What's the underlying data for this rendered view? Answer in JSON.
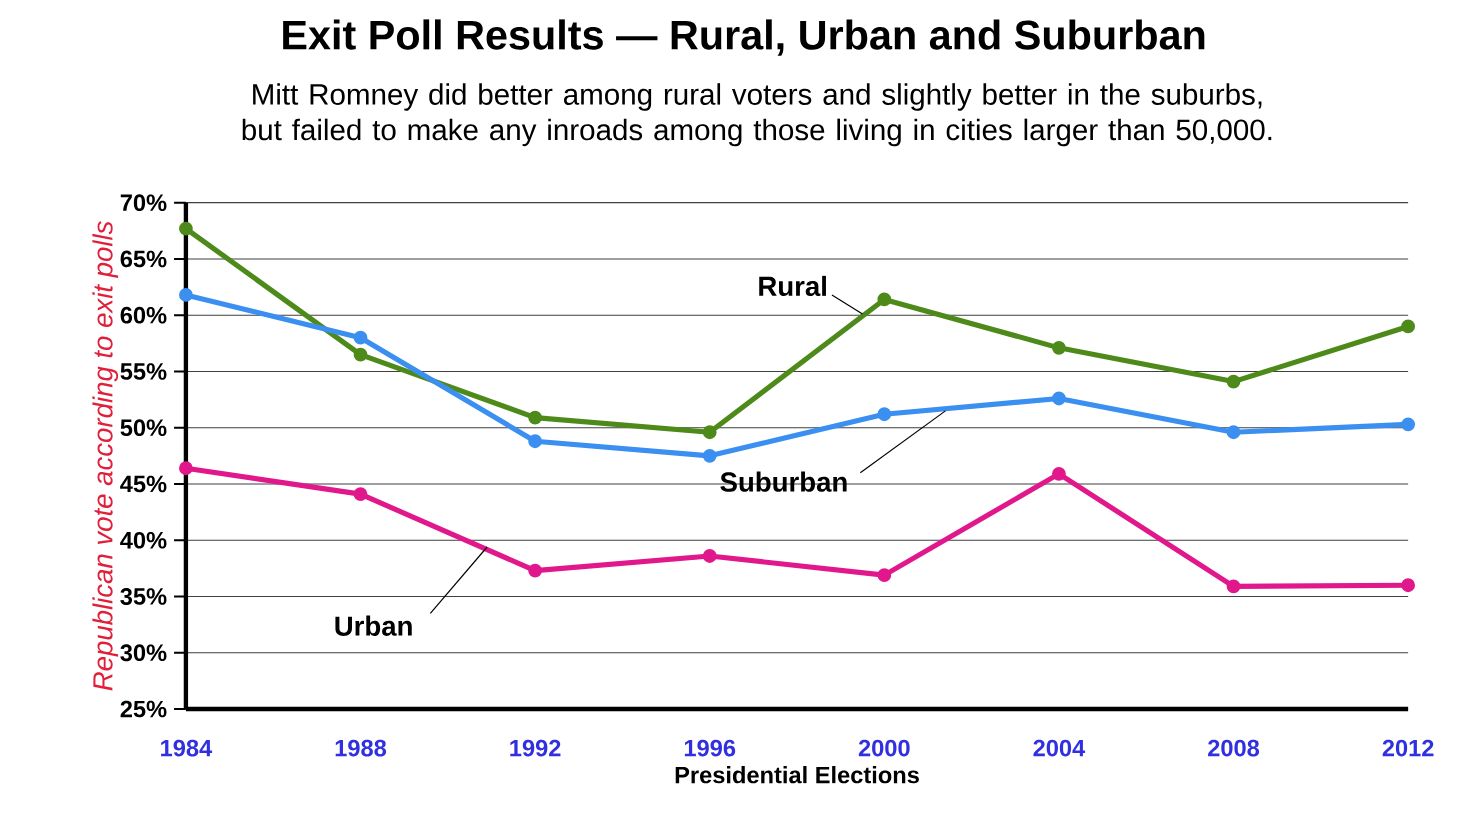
{
  "chart_data": {
    "type": "line",
    "title": "Exit Poll Results — Rural, Urban and Suburban",
    "subtitle": "Mitt Romney did better among rural voters and slightly better in the suburbs, but failed to make any inroads among those living in cities larger than 50,000.",
    "xlabel": "Presidential Elections",
    "ylabel": "Republican vote according to exit polls",
    "x": [
      1984,
      1988,
      1992,
      1996,
      2000,
      2004,
      2008,
      2012
    ],
    "xlim": [
      1984,
      2012
    ],
    "xticks": [
      1984,
      1988,
      1992,
      1996,
      2000,
      2004,
      2008,
      2012
    ],
    "ylim": [
      25,
      70
    ],
    "yticks": [
      {
        "value": 25,
        "label": "25%"
      },
      {
        "value": 30,
        "label": "30%"
      },
      {
        "value": 35,
        "label": "35%"
      },
      {
        "value": 40,
        "label": "40%"
      },
      {
        "value": 45,
        "label": "45%"
      },
      {
        "value": 50,
        "label": "50%"
      },
      {
        "value": 55,
        "label": "55%"
      },
      {
        "value": 60,
        "label": "60%"
      },
      {
        "value": 65,
        "label": "65%"
      },
      {
        "value": 70,
        "label": "70%"
      }
    ],
    "grid": "y",
    "legend": false,
    "marker": "circle",
    "line_style": "solid",
    "series": [
      {
        "name": "Rural",
        "color": "#4e8a1a",
        "values": [
          67.7,
          56.5,
          50.9,
          49.6,
          61.4,
          57.1,
          54.1,
          59.0
        ]
      },
      {
        "name": "Suburban",
        "color": "#3a8ff0",
        "values": [
          61.8,
          58.0,
          48.8,
          47.5,
          51.2,
          52.6,
          49.6,
          50.3
        ]
      },
      {
        "name": "Urban",
        "color": "#e0188c",
        "values": [
          46.4,
          44.1,
          37.3,
          38.6,
          36.9,
          45.9,
          35.9,
          36.0
        ]
      }
    ]
  }
}
